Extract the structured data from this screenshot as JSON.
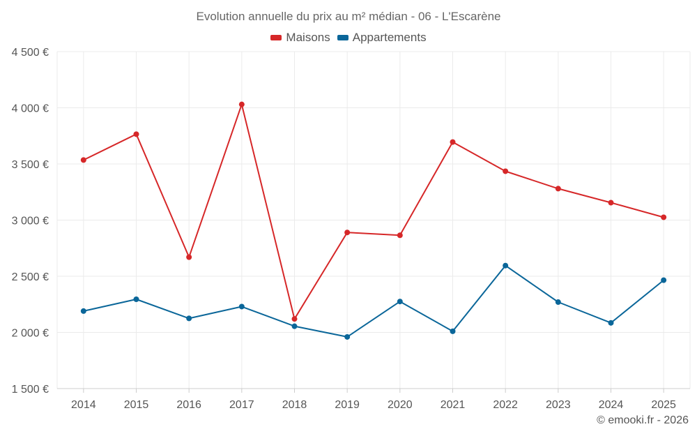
{
  "chart_data": {
    "type": "line",
    "title": "Evolution annuelle du prix au m² médian - 06 - L'Escarène",
    "categories": [
      "2014",
      "2015",
      "2016",
      "2017",
      "2018",
      "2019",
      "2020",
      "2021",
      "2022",
      "2023",
      "2024",
      "2025"
    ],
    "series": [
      {
        "name": "Maisons",
        "color": "#d62728",
        "values": [
          3535,
          3765,
          2670,
          4030,
          2120,
          2890,
          2865,
          3695,
          3435,
          3280,
          3155,
          3025
        ]
      },
      {
        "name": "Appartements",
        "color": "#0a6699",
        "values": [
          2190,
          2295,
          2125,
          2230,
          2055,
          1960,
          2275,
          2010,
          2595,
          2270,
          2085,
          2465
        ]
      }
    ],
    "y_ticks": [
      1500,
      2000,
      2500,
      3000,
      3500,
      4000,
      4500
    ],
    "y_tick_labels": [
      "1 500 €",
      "2 000 €",
      "2 500 €",
      "3 000 €",
      "3 500 €",
      "4 000 €",
      "4 500 €"
    ],
    "ylim": [
      1500,
      4500
    ],
    "xlabel": "",
    "ylabel": "",
    "grid": true,
    "legend_position": "top-center"
  },
  "legend": {
    "maisons_label": "Maisons",
    "appartements_label": "Appartements"
  },
  "credit": "© emooki.fr - 2026"
}
